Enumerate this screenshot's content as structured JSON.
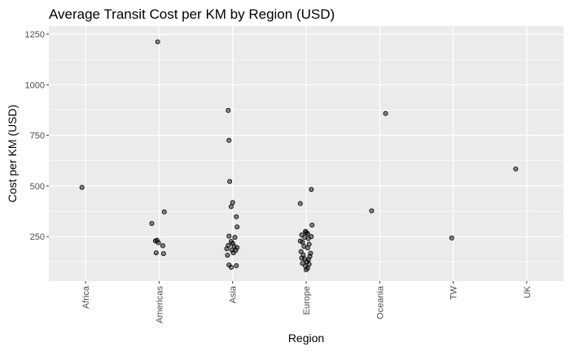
{
  "chart_data": {
    "type": "scatter",
    "title": "Average Transit Cost per KM by Region (USD)",
    "xlabel": "Region",
    "ylabel": "Cost per KM (USD)",
    "categories": [
      "Africa",
      "Americas",
      "Asia",
      "Europe",
      "Oceania",
      "TW",
      "UK"
    ],
    "y_ticks": [
      250,
      500,
      750,
      1000,
      1250
    ],
    "y_tick_labels": [
      "250",
      "500",
      "750",
      "1000",
      "1250"
    ],
    "ylim": [
      30,
      1290
    ],
    "grid": true,
    "points": [
      {
        "category": "Africa",
        "jitter": -0.05,
        "y": 493
      },
      {
        "category": "Americas",
        "jitter": -0.02,
        "y": 1212
      },
      {
        "category": "Americas",
        "jitter": 0.07,
        "y": 372
      },
      {
        "category": "Americas",
        "jitter": -0.1,
        "y": 315
      },
      {
        "category": "Americas",
        "jitter": -0.05,
        "y": 228
      },
      {
        "category": "Americas",
        "jitter": -0.03,
        "y": 232
      },
      {
        "category": "Americas",
        "jitter": -0.01,
        "y": 220
      },
      {
        "category": "Americas",
        "jitter": 0.05,
        "y": 205
      },
      {
        "category": "Americas",
        "jitter": -0.04,
        "y": 170
      },
      {
        "category": "Americas",
        "jitter": 0.06,
        "y": 166
      },
      {
        "category": "Asia",
        "jitter": -0.06,
        "y": 873
      },
      {
        "category": "Asia",
        "jitter": -0.05,
        "y": 725
      },
      {
        "category": "Asia",
        "jitter": -0.04,
        "y": 522
      },
      {
        "category": "Asia",
        "jitter": 0.0,
        "y": 418
      },
      {
        "category": "Asia",
        "jitter": -0.02,
        "y": 398
      },
      {
        "category": "Asia",
        "jitter": 0.05,
        "y": 348
      },
      {
        "category": "Asia",
        "jitter": 0.06,
        "y": 298
      },
      {
        "category": "Asia",
        "jitter": -0.05,
        "y": 252
      },
      {
        "category": "Asia",
        "jitter": 0.03,
        "y": 246
      },
      {
        "category": "Asia",
        "jitter": -0.02,
        "y": 226
      },
      {
        "category": "Asia",
        "jitter": 0.0,
        "y": 216
      },
      {
        "category": "Asia",
        "jitter": -0.06,
        "y": 206
      },
      {
        "category": "Asia",
        "jitter": 0.02,
        "y": 202
      },
      {
        "category": "Asia",
        "jitter": 0.06,
        "y": 196
      },
      {
        "category": "Asia",
        "jitter": -0.08,
        "y": 190
      },
      {
        "category": "Asia",
        "jitter": -0.01,
        "y": 184
      },
      {
        "category": "Asia",
        "jitter": 0.04,
        "y": 182
      },
      {
        "category": "Asia",
        "jitter": 0.01,
        "y": 170
      },
      {
        "category": "Asia",
        "jitter": -0.07,
        "y": 158
      },
      {
        "category": "Asia",
        "jitter": -0.05,
        "y": 110
      },
      {
        "category": "Asia",
        "jitter": 0.05,
        "y": 106
      },
      {
        "category": "Asia",
        "jitter": -0.02,
        "y": 98
      },
      {
        "category": "Europe",
        "jitter": -0.08,
        "y": 413
      },
      {
        "category": "Europe",
        "jitter": 0.07,
        "y": 483
      },
      {
        "category": "Europe",
        "jitter": 0.08,
        "y": 307
      },
      {
        "category": "Europe",
        "jitter": -0.01,
        "y": 276
      },
      {
        "category": "Europe",
        "jitter": 0.0,
        "y": 270
      },
      {
        "category": "Europe",
        "jitter": 0.02,
        "y": 265
      },
      {
        "category": "Europe",
        "jitter": -0.06,
        "y": 258
      },
      {
        "category": "Europe",
        "jitter": 0.07,
        "y": 250
      },
      {
        "category": "Europe",
        "jitter": -0.02,
        "y": 246
      },
      {
        "category": "Europe",
        "jitter": 0.03,
        "y": 240
      },
      {
        "category": "Europe",
        "jitter": -0.08,
        "y": 228
      },
      {
        "category": "Europe",
        "jitter": -0.05,
        "y": 222
      },
      {
        "category": "Europe",
        "jitter": 0.04,
        "y": 212
      },
      {
        "category": "Europe",
        "jitter": -0.03,
        "y": 202
      },
      {
        "category": "Europe",
        "jitter": 0.02,
        "y": 194
      },
      {
        "category": "Europe",
        "jitter": -0.07,
        "y": 176
      },
      {
        "category": "Europe",
        "jitter": 0.06,
        "y": 168
      },
      {
        "category": "Europe",
        "jitter": -0.04,
        "y": 160
      },
      {
        "category": "Europe",
        "jitter": 0.05,
        "y": 152
      },
      {
        "category": "Europe",
        "jitter": -0.06,
        "y": 144
      },
      {
        "category": "Europe",
        "jitter": -0.02,
        "y": 140
      },
      {
        "category": "Europe",
        "jitter": 0.03,
        "y": 136
      },
      {
        "category": "Europe",
        "jitter": 0.01,
        "y": 126
      },
      {
        "category": "Europe",
        "jitter": -0.05,
        "y": 118
      },
      {
        "category": "Europe",
        "jitter": 0.04,
        "y": 114
      },
      {
        "category": "Europe",
        "jitter": -0.01,
        "y": 104
      },
      {
        "category": "Europe",
        "jitter": 0.02,
        "y": 94
      },
      {
        "category": "Europe",
        "jitter": 0.0,
        "y": 86
      },
      {
        "category": "Oceania",
        "jitter": 0.08,
        "y": 858
      },
      {
        "category": "Oceania",
        "jitter": -0.11,
        "y": 377
      },
      {
        "category": "TW",
        "jitter": -0.02,
        "y": 243
      },
      {
        "category": "UK",
        "jitter": -0.15,
        "y": 584
      }
    ]
  }
}
